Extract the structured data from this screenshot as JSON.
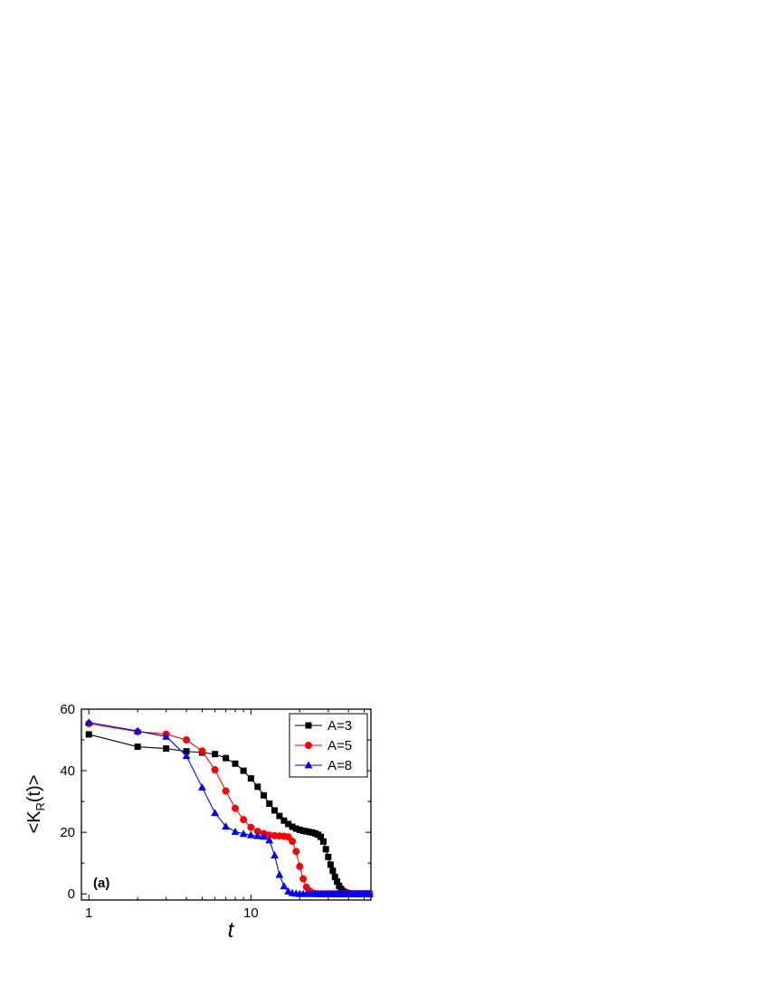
{
  "chart_data": {
    "type": "line",
    "panel_label": "(a)",
    "xlabel": "t",
    "ylabel": {
      "prefix": "<K",
      "subscript": "R",
      "suffix": "(t)>"
    },
    "xscale": "log",
    "xlim": [
      0.9,
      55
    ],
    "ylim": [
      -2,
      60
    ],
    "xticks": [
      1,
      10
    ],
    "xtick_labels": [
      "1",
      "10"
    ],
    "yticks": [
      0,
      20,
      40,
      60
    ],
    "ytick_labels": [
      "0",
      "20",
      "40",
      "60"
    ],
    "grid": false,
    "legend_position": "top-right",
    "series": [
      {
        "name": "A=3",
        "color": "#000000",
        "marker": "square",
        "points": [
          [
            1,
            51.8
          ],
          [
            2,
            47.8
          ],
          [
            3,
            47.2
          ],
          [
            4,
            46.3
          ],
          [
            5,
            45.9
          ],
          [
            6,
            45.4
          ],
          [
            7,
            44.1
          ],
          [
            8,
            42.3
          ],
          [
            9,
            40.0
          ],
          [
            10,
            37.5
          ],
          [
            11,
            34.8
          ],
          [
            12,
            32.0
          ],
          [
            13,
            29.3
          ],
          [
            14,
            27.1
          ],
          [
            15,
            25.3
          ],
          [
            16,
            23.8
          ],
          [
            17,
            22.7
          ],
          [
            18,
            21.8
          ],
          [
            19,
            21.2
          ],
          [
            20,
            20.8
          ],
          [
            21,
            20.5
          ],
          [
            22,
            20.3
          ],
          [
            23,
            20.1
          ],
          [
            24,
            19.9
          ],
          [
            25,
            19.6
          ],
          [
            26,
            19.2
          ],
          [
            27,
            18.5
          ],
          [
            28,
            17.0
          ],
          [
            29,
            14.5
          ],
          [
            30,
            12.0
          ],
          [
            31,
            9.5
          ],
          [
            32,
            7.5
          ],
          [
            33,
            5.5
          ],
          [
            34,
            4.0
          ],
          [
            35,
            2.6
          ],
          [
            36,
            1.6
          ],
          [
            37,
            0.9
          ],
          [
            38,
            0.5
          ],
          [
            39,
            0.3
          ],
          [
            40,
            0.2
          ],
          [
            41,
            0.1
          ],
          [
            42,
            0.05
          ],
          [
            43,
            0.02
          ],
          [
            44,
            0.0
          ],
          [
            45,
            0.0
          ],
          [
            46,
            0.0
          ],
          [
            47,
            0.0
          ],
          [
            48,
            0.0
          ],
          [
            49,
            0.0
          ],
          [
            50,
            0.0
          ],
          [
            51,
            0.0
          ],
          [
            52,
            0.0
          ],
          [
            53,
            0.0
          ],
          [
            54,
            0.0
          ]
        ]
      },
      {
        "name": "A=5",
        "color": "#ff0000",
        "marker": "circle",
        "points": [
          [
            1,
            55.3
          ],
          [
            2,
            52.7
          ],
          [
            3,
            51.9
          ],
          [
            4,
            50.0
          ],
          [
            5,
            46.4
          ],
          [
            6,
            40.3
          ],
          [
            7,
            33.4
          ],
          [
            8,
            27.8
          ],
          [
            9,
            24.1
          ],
          [
            10,
            21.6
          ],
          [
            11,
            20.3
          ],
          [
            12,
            19.6
          ],
          [
            13,
            19.1
          ],
          [
            14,
            18.9
          ],
          [
            15,
            18.8
          ],
          [
            16,
            18.7
          ],
          [
            17,
            18.5
          ],
          [
            18,
            17.1
          ],
          [
            19,
            13.8
          ],
          [
            20,
            8.9
          ],
          [
            21,
            4.9
          ],
          [
            22,
            2.2
          ],
          [
            23,
            0.9
          ],
          [
            24,
            0.3
          ],
          [
            25,
            0.1
          ],
          [
            26,
            0.0
          ],
          [
            27,
            0.0
          ],
          [
            28,
            0.0
          ],
          [
            29,
            0.0
          ],
          [
            30,
            0.0
          ],
          [
            31,
            0.0
          ],
          [
            32,
            0.0
          ],
          [
            33,
            0.0
          ],
          [
            34,
            0.0
          ],
          [
            35,
            0.0
          ],
          [
            36,
            0.0
          ],
          [
            37,
            0.0
          ],
          [
            38,
            0.0
          ],
          [
            39,
            0.0
          ],
          [
            40,
            0.0
          ],
          [
            41,
            0.0
          ],
          [
            42,
            0.0
          ],
          [
            43,
            0.0
          ],
          [
            44,
            0.0
          ],
          [
            45,
            0.0
          ],
          [
            46,
            0.0
          ],
          [
            47,
            0.0
          ],
          [
            48,
            0.0
          ],
          [
            49,
            0.0
          ],
          [
            50,
            0.0
          ],
          [
            51,
            0.0
          ],
          [
            52,
            0.0
          ],
          [
            53,
            0.0
          ],
          [
            54,
            0.0
          ]
        ]
      },
      {
        "name": "A=8",
        "color": "#0000ff",
        "marker": "triangle",
        "points": [
          [
            1,
            55.7
          ],
          [
            2,
            52.9
          ],
          [
            3,
            51.1
          ],
          [
            4,
            44.8
          ],
          [
            5,
            34.6
          ],
          [
            6,
            26.3
          ],
          [
            7,
            21.9
          ],
          [
            8,
            20.2
          ],
          [
            9,
            19.5
          ],
          [
            10,
            19.1
          ],
          [
            11,
            18.8
          ],
          [
            12,
            18.6
          ],
          [
            13,
            17.4
          ],
          [
            14,
            12.5
          ],
          [
            15,
            6.2
          ],
          [
            16,
            2.5
          ],
          [
            17,
            0.8
          ],
          [
            18,
            0.3
          ],
          [
            19,
            0.1
          ],
          [
            20,
            0.0
          ],
          [
            21,
            0.0
          ],
          [
            22,
            0.0
          ],
          [
            23,
            0.0
          ],
          [
            24,
            0.0
          ],
          [
            25,
            0.0
          ],
          [
            26,
            0.0
          ],
          [
            27,
            0.0
          ],
          [
            28,
            0.0
          ],
          [
            29,
            0.0
          ],
          [
            30,
            0.0
          ],
          [
            31,
            0.0
          ],
          [
            32,
            0.0
          ],
          [
            33,
            0.0
          ],
          [
            34,
            0.0
          ],
          [
            35,
            0.0
          ],
          [
            36,
            0.0
          ],
          [
            37,
            0.0
          ],
          [
            38,
            0.0
          ],
          [
            39,
            0.0
          ],
          [
            40,
            0.0
          ],
          [
            41,
            0.0
          ],
          [
            42,
            0.0
          ],
          [
            43,
            0.0
          ],
          [
            44,
            0.0
          ],
          [
            45,
            0.0
          ],
          [
            46,
            0.0
          ],
          [
            47,
            0.0
          ],
          [
            48,
            0.0
          ],
          [
            49,
            0.0
          ],
          [
            50,
            0.0
          ],
          [
            51,
            0.0
          ],
          [
            52,
            0.0
          ],
          [
            53,
            0.0
          ],
          [
            54,
            0.0
          ]
        ]
      }
    ]
  }
}
